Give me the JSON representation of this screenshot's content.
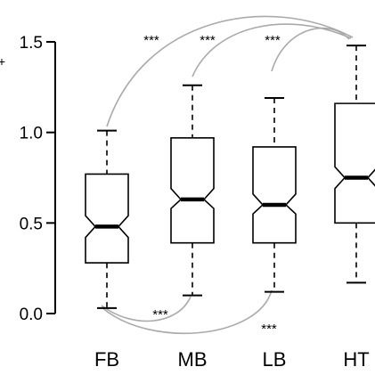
{
  "chart_data": {
    "type": "box",
    "categories": [
      "FB",
      "MB",
      "LB",
      "HT"
    ],
    "ylim": [
      0.0,
      1.5
    ],
    "yticks": [
      0.0,
      0.5,
      1.0,
      1.5
    ],
    "ytick_labels": [
      "0.0",
      "0.5",
      "1.0",
      "1.5"
    ],
    "ylabel": "+",
    "boxes": [
      {
        "category": "FB",
        "whisker_low": 0.03,
        "q1": 0.28,
        "median": 0.48,
        "q3": 0.77,
        "whisker_high": 1.01,
        "notch_low": 0.42,
        "notch_high": 0.54
      },
      {
        "category": "MB",
        "whisker_low": 0.1,
        "q1": 0.39,
        "median": 0.63,
        "q3": 0.97,
        "whisker_high": 1.26,
        "notch_low": 0.58,
        "notch_high": 0.69
      },
      {
        "category": "LB",
        "whisker_low": 0.12,
        "q1": 0.39,
        "median": 0.6,
        "q3": 0.92,
        "whisker_high": 1.19,
        "notch_low": 0.55,
        "notch_high": 0.66
      },
      {
        "category": "HT",
        "whisker_low": 0.17,
        "q1": 0.5,
        "median": 0.75,
        "q3": 1.16,
        "whisker_high": 1.48,
        "notch_low": 0.69,
        "notch_high": 0.81
      }
    ],
    "comparisons": [
      {
        "from": "FB",
        "to": "HT",
        "side": "top",
        "label": "***"
      },
      {
        "from": "MB",
        "to": "HT",
        "side": "top",
        "label": "***"
      },
      {
        "from": "LB",
        "to": "HT",
        "side": "top",
        "label": "***"
      },
      {
        "from": "FB",
        "to": "MB",
        "side": "bottom",
        "label": "***"
      },
      {
        "from": "FB",
        "to": "LB",
        "side": "bottom",
        "label": "***"
      }
    ],
    "colors": {
      "box_stroke": "#000000",
      "bracket": "#aaaaaa",
      "background": "#ffffff"
    }
  }
}
